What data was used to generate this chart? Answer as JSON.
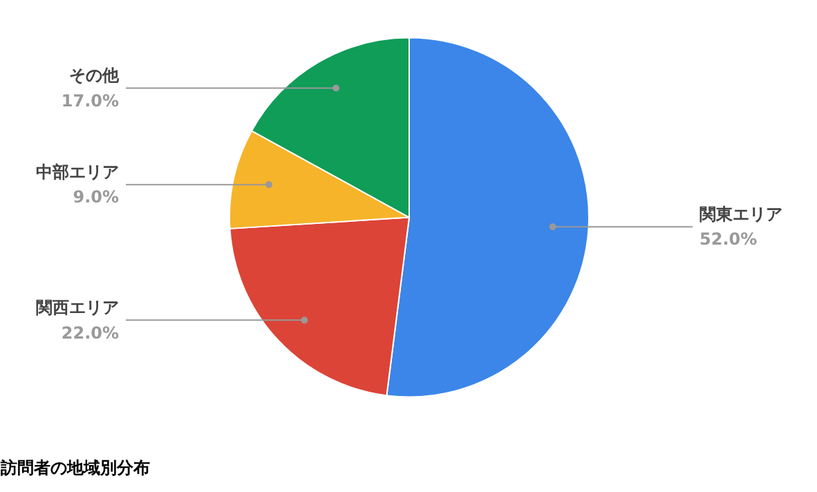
{
  "chart_data": {
    "type": "pie",
    "title": "訪問者の地域別分布",
    "categories": [
      "関東エリア",
      "関西エリア",
      "中部エリア",
      "その他"
    ],
    "values": [
      52.0,
      22.0,
      9.0,
      17.0
    ],
    "colors": [
      "#3b86e8",
      "#dc4437",
      "#f6b42a",
      "#0f9d58"
    ],
    "value_labels": [
      "52.0%",
      "22.0%",
      "9.0%",
      "17.0%"
    ]
  }
}
